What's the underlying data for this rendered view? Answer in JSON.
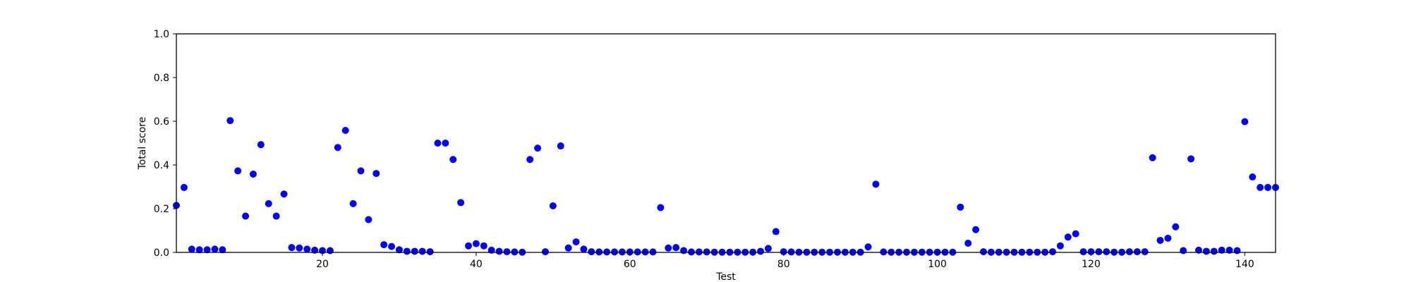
{
  "chart_data": {
    "type": "scatter",
    "xlabel": "Test",
    "ylabel": "Total score",
    "xlim": [
      1,
      144
    ],
    "ylim": [
      0,
      1.0
    ],
    "xticks": [
      20,
      40,
      60,
      80,
      100,
      120,
      140
    ],
    "yticks": [
      0.0,
      0.2,
      0.4,
      0.6,
      0.8,
      1.0
    ],
    "xtick_labels": [
      "20",
      "40",
      "60",
      "80",
      "100",
      "120",
      "140"
    ],
    "ytick_labels": [
      "0.0",
      "0.2",
      "0.4",
      "0.6",
      "0.8",
      "1.0"
    ],
    "grid": false,
    "marker_color": "#0000ff",
    "x": [
      1,
      2,
      3,
      4,
      5,
      6,
      7,
      8,
      9,
      10,
      11,
      12,
      13,
      14,
      15,
      16,
      17,
      18,
      19,
      20,
      21,
      22,
      23,
      24,
      25,
      26,
      27,
      28,
      29,
      30,
      31,
      32,
      33,
      34,
      35,
      36,
      37,
      38,
      39,
      40,
      41,
      42,
      43,
      44,
      45,
      46,
      47,
      48,
      49,
      50,
      51,
      52,
      53,
      54,
      55,
      56,
      57,
      58,
      59,
      60,
      61,
      62,
      63,
      64,
      65,
      66,
      67,
      68,
      69,
      70,
      71,
      72,
      73,
      74,
      75,
      76,
      77,
      78,
      79,
      80,
      81,
      82,
      83,
      84,
      85,
      86,
      87,
      88,
      89,
      90,
      91,
      92,
      93,
      94,
      95,
      96,
      97,
      98,
      99,
      100,
      101,
      102,
      103,
      104,
      105,
      106,
      107,
      108,
      109,
      110,
      111,
      112,
      113,
      114,
      115,
      116,
      117,
      118,
      119,
      120,
      121,
      122,
      123,
      124,
      125,
      126,
      127,
      128,
      129,
      130,
      131,
      132,
      133,
      134,
      135,
      136,
      137,
      138,
      139,
      140,
      141,
      142,
      143,
      144
    ],
    "y": [
      0.215,
      0.297,
      0.015,
      0.012,
      0.012,
      0.015,
      0.012,
      0.603,
      0.373,
      0.166,
      0.358,
      0.493,
      0.223,
      0.166,
      0.267,
      0.022,
      0.02,
      0.015,
      0.01,
      0.008,
      0.008,
      0.48,
      0.558,
      0.223,
      0.373,
      0.15,
      0.361,
      0.035,
      0.027,
      0.012,
      0.005,
      0.005,
      0.005,
      0.003,
      0.5,
      0.5,
      0.425,
      0.228,
      0.03,
      0.04,
      0.03,
      0.01,
      0.005,
      0.003,
      0.002,
      0.001,
      0.425,
      0.477,
      0.003,
      0.213,
      0.487,
      0.02,
      0.048,
      0.015,
      0.003,
      0.002,
      0.002,
      0.002,
      0.002,
      0.002,
      0.002,
      0.002,
      0.002,
      0.205,
      0.02,
      0.022,
      0.008,
      0.002,
      0.002,
      0.002,
      0.001,
      0.001,
      0.001,
      0.001,
      0.001,
      0.001,
      0.005,
      0.018,
      0.095,
      0.003,
      0.002,
      0.001,
      0.001,
      0.001,
      0.001,
      0.001,
      0.001,
      0.001,
      0.001,
      0.001,
      0.025,
      0.312,
      0.002,
      0.001,
      0.001,
      0.001,
      0.001,
      0.001,
      0.001,
      0.001,
      0.001,
      0.001,
      0.207,
      0.042,
      0.104,
      0.003,
      0.001,
      0.001,
      0.001,
      0.001,
      0.001,
      0.001,
      0.001,
      0.001,
      0.003,
      0.03,
      0.07,
      0.085,
      0.003,
      0.003,
      0.003,
      0.003,
      0.001,
      0.001,
      0.003,
      0.003,
      0.003,
      0.433,
      0.055,
      0.065,
      0.117,
      0.008,
      0.428,
      0.01,
      0.005,
      0.005,
      0.01,
      0.01,
      0.008,
      0.598,
      0.345,
      0.297,
      0.297,
      0.297
    ]
  }
}
